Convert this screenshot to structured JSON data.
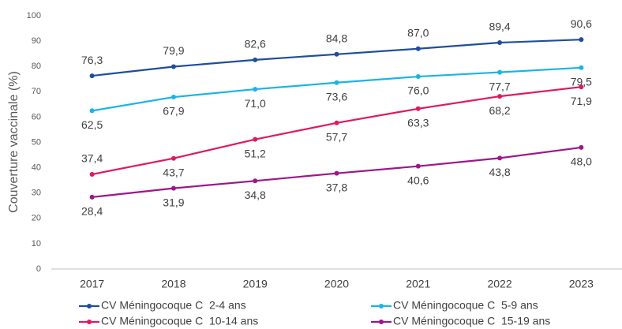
{
  "chart_data": {
    "type": "line",
    "y_label": "Couverture vaccinale (%)",
    "categories": [
      "2017",
      "2018",
      "2019",
      "2020",
      "2021",
      "2022",
      "2023"
    ],
    "series": [
      {
        "name": "CV Méningocoque C  2-4 ans",
        "color": "#1f4e9b",
        "values": [
          76.3,
          79.9,
          82.6,
          84.8,
          87.0,
          89.4,
          90.6
        ],
        "value_labels": [
          "76,3",
          "79,9",
          "82,6",
          "84,8",
          "87,0",
          "89,4",
          "90,6"
        ]
      },
      {
        "name": "CV Méningocoque C  5-9 ans",
        "color": "#1ab4e6",
        "values": [
          62.5,
          67.9,
          71.0,
          73.6,
          76.0,
          77.7,
          79.5
        ],
        "value_labels": [
          "62,5",
          "67,9",
          "71,0",
          "73,6",
          "76,0",
          "77,7",
          "79,5"
        ]
      },
      {
        "name": "CV Méningocoque C  10-14 ans",
        "color": "#e2185b",
        "values": [
          37.4,
          43.7,
          51.2,
          57.7,
          63.3,
          68.2,
          71.9
        ],
        "value_labels": [
          "37,4",
          "43,7",
          "51,2",
          "57,7",
          "63,3",
          "68,2",
          "71,9"
        ]
      },
      {
        "name": "CV Méningocoque C  15-19 ans",
        "color": "#9e168a",
        "values": [
          28.4,
          31.9,
          34.8,
          37.8,
          40.6,
          43.8,
          48.0
        ],
        "value_labels": [
          "28,4",
          "31,9",
          "34,8",
          "37,8",
          "40,6",
          "43,8",
          "48,0"
        ]
      }
    ],
    "ylim": [
      0,
      100
    ],
    "yticks": [
      0,
      10,
      20,
      30,
      40,
      50,
      60,
      70,
      80,
      90,
      100
    ],
    "grid": false
  }
}
